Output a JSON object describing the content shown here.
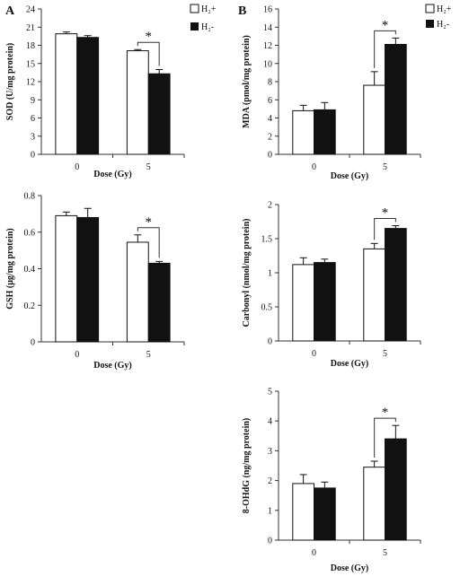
{
  "panel_letters": [
    "A",
    "B"
  ],
  "legend": {
    "entries": [
      {
        "label": "H₂+",
        "color": "#ffffff"
      },
      {
        "label": "H₂-",
        "color": "#111111"
      }
    ]
  },
  "chart_data": [
    {
      "type": "bar",
      "ylabel": "SOD (U/mg protein)",
      "xlabel": "Dose (Gy)",
      "categories": [
        "0",
        "5"
      ],
      "yticks": [
        "0",
        "3",
        "6",
        "9",
        "12",
        "15",
        "18",
        "21",
        "24"
      ],
      "ylim": [
        0,
        24
      ],
      "series": [
        {
          "name": "H₂+",
          "values": [
            19.9,
            17.1
          ],
          "errors": [
            0.3,
            0.2
          ]
        },
        {
          "name": "H₂-",
          "values": [
            19.3,
            13.3
          ],
          "errors": [
            0.3,
            0.7
          ]
        }
      ],
      "significance": "*"
    },
    {
      "type": "bar",
      "ylabel": "GSH (μg/mg protein)",
      "xlabel": "Dose (Gy)",
      "categories": [
        "0",
        "5"
      ],
      "yticks": [
        "0",
        "0.2",
        "0.4",
        "0.6",
        "0.8"
      ],
      "ylim": [
        0,
        0.8
      ],
      "series": [
        {
          "name": "H₂+",
          "values": [
            0.69,
            0.545
          ],
          "errors": [
            0.02,
            0.04
          ]
        },
        {
          "name": "H₂-",
          "values": [
            0.68,
            0.43
          ],
          "errors": [
            0.05,
            0.01
          ]
        }
      ],
      "significance": "*"
    },
    {
      "type": "bar",
      "ylabel": "MDA (pmol/mg protein)",
      "xlabel": "Dose (Gy)",
      "categories": [
        "0",
        "5"
      ],
      "yticks": [
        "0",
        "2",
        "4",
        "6",
        "8",
        "10",
        "12",
        "14",
        "16"
      ],
      "ylim": [
        0,
        16
      ],
      "series": [
        {
          "name": "H₂+",
          "values": [
            4.8,
            7.6
          ],
          "errors": [
            0.6,
            1.5
          ]
        },
        {
          "name": "H₂-",
          "values": [
            4.9,
            12.1
          ],
          "errors": [
            0.8,
            0.7
          ]
        }
      ],
      "significance": "*"
    },
    {
      "type": "bar",
      "ylabel": "Carbonyl (nmol/mg protein)",
      "xlabel": "Dose (Gy)",
      "categories": [
        "0",
        "5"
      ],
      "yticks": [
        "0",
        "0.5",
        "1",
        "1.5",
        "2"
      ],
      "ylim": [
        0,
        2
      ],
      "series": [
        {
          "name": "H₂+",
          "values": [
            1.12,
            1.35
          ],
          "errors": [
            0.1,
            0.08
          ]
        },
        {
          "name": "H₂-",
          "values": [
            1.15,
            1.65
          ],
          "errors": [
            0.05,
            0.04
          ]
        }
      ],
      "significance": "*"
    },
    {
      "type": "bar",
      "ylabel": "8-OHdG (ng/mg protein)",
      "xlabel": "Dose (Gy)",
      "categories": [
        "0",
        "5"
      ],
      "yticks": [
        "0",
        "1",
        "2",
        "3",
        "4",
        "5"
      ],
      "ylim": [
        0,
        5
      ],
      "series": [
        {
          "name": "H₂+",
          "values": [
            1.9,
            2.45
          ],
          "errors": [
            0.3,
            0.2
          ]
        },
        {
          "name": "H₂-",
          "values": [
            1.75,
            3.4
          ],
          "errors": [
            0.2,
            0.45
          ]
        }
      ],
      "significance": "*"
    }
  ]
}
